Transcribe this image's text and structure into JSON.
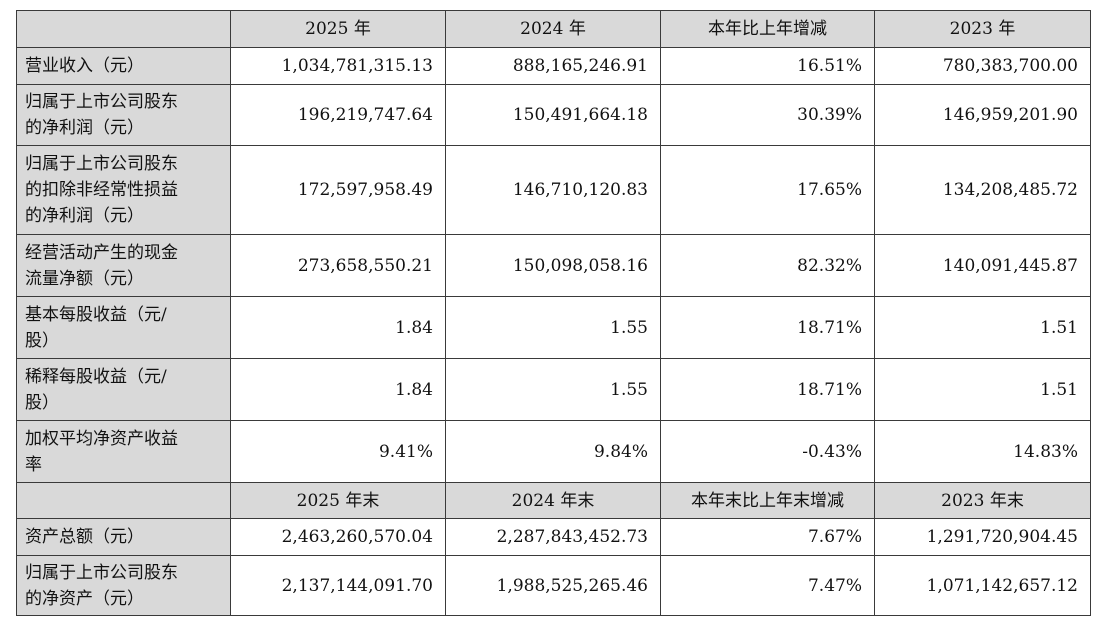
{
  "header1": [
    "",
    "2025 年",
    "2024 年",
    "本年比上年增减",
    "2023 年"
  ],
  "rows1": [
    {
      "label": [
        "营业收入（元）"
      ],
      "values": [
        "1,034,781,315.13",
        "888,165,246.91",
        "16.51%",
        "780,383,700.00"
      ]
    },
    {
      "label": [
        "归属于上市公司股东",
        "的净利润（元）"
      ],
      "values": [
        "196,219,747.64",
        "150,491,664.18",
        "30.39%",
        "146,959,201.90"
      ]
    },
    {
      "label": [
        "归属于上市公司股东",
        "的扣除非经常性损益",
        "的净利润（元）"
      ],
      "values": [
        "172,597,958.49",
        "146,710,120.83",
        "17.65%",
        "134,208,485.72"
      ]
    },
    {
      "label": [
        "经营活动产生的现金",
        "流量净额（元）"
      ],
      "values": [
        "273,658,550.21",
        "150,098,058.16",
        "82.32%",
        "140,091,445.87"
      ]
    },
    {
      "label": [
        "基本每股收益（元/",
        "股）"
      ],
      "values": [
        "1.84",
        "1.55",
        "18.71%",
        "1.51"
      ]
    },
    {
      "label": [
        "稀释每股收益（元/",
        "股）"
      ],
      "values": [
        "1.84",
        "1.55",
        "18.71%",
        "1.51"
      ]
    },
    {
      "label": [
        "加权平均净资产收益",
        "率"
      ],
      "values": [
        "9.41%",
        "9.84%",
        "-0.43%",
        "14.83%"
      ]
    }
  ],
  "header2": [
    "",
    "2025 年末",
    "2024 年末",
    "本年末比上年末增减",
    "2023 年末"
  ],
  "rows2": [
    {
      "label": [
        "资产总额（元）"
      ],
      "values": [
        "2,463,260,570.04",
        "2,287,843,452.73",
        "7.67%",
        "1,291,720,904.45"
      ]
    },
    {
      "label": [
        "归属于上市公司股东",
        "的净资产（元）"
      ],
      "values": [
        "2,137,144,091.70",
        "1,988,525,265.46",
        "7.47%",
        "1,071,142,657.12"
      ]
    }
  ]
}
